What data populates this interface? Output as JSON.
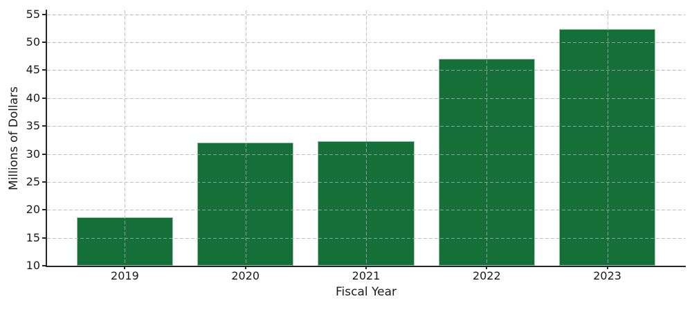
{
  "figure": {
    "background": "#ffffff",
    "text_color": "#191919",
    "spine_color": "#262626",
    "grid_color": "#b0b0b0"
  },
  "chart_data": {
    "type": "bar",
    "title": "",
    "xlabel": "Fiscal Year",
    "ylabel": "Millions of Dollars",
    "categories": [
      "2019",
      "2020",
      "2021",
      "2022",
      "2023"
    ],
    "values": [
      18.7,
      32.0,
      32.3,
      47.0,
      52.4
    ],
    "bar_color": "#156F38",
    "bar_edge_color": "rgba(255,255,255,0.6)",
    "ylim": [
      10,
      55.7
    ],
    "yticks": [
      10,
      15,
      20,
      25,
      30,
      35,
      40,
      45,
      50,
      55
    ],
    "grid": "dashed gridlines on both axes, drawn above bars",
    "legend": "none"
  }
}
